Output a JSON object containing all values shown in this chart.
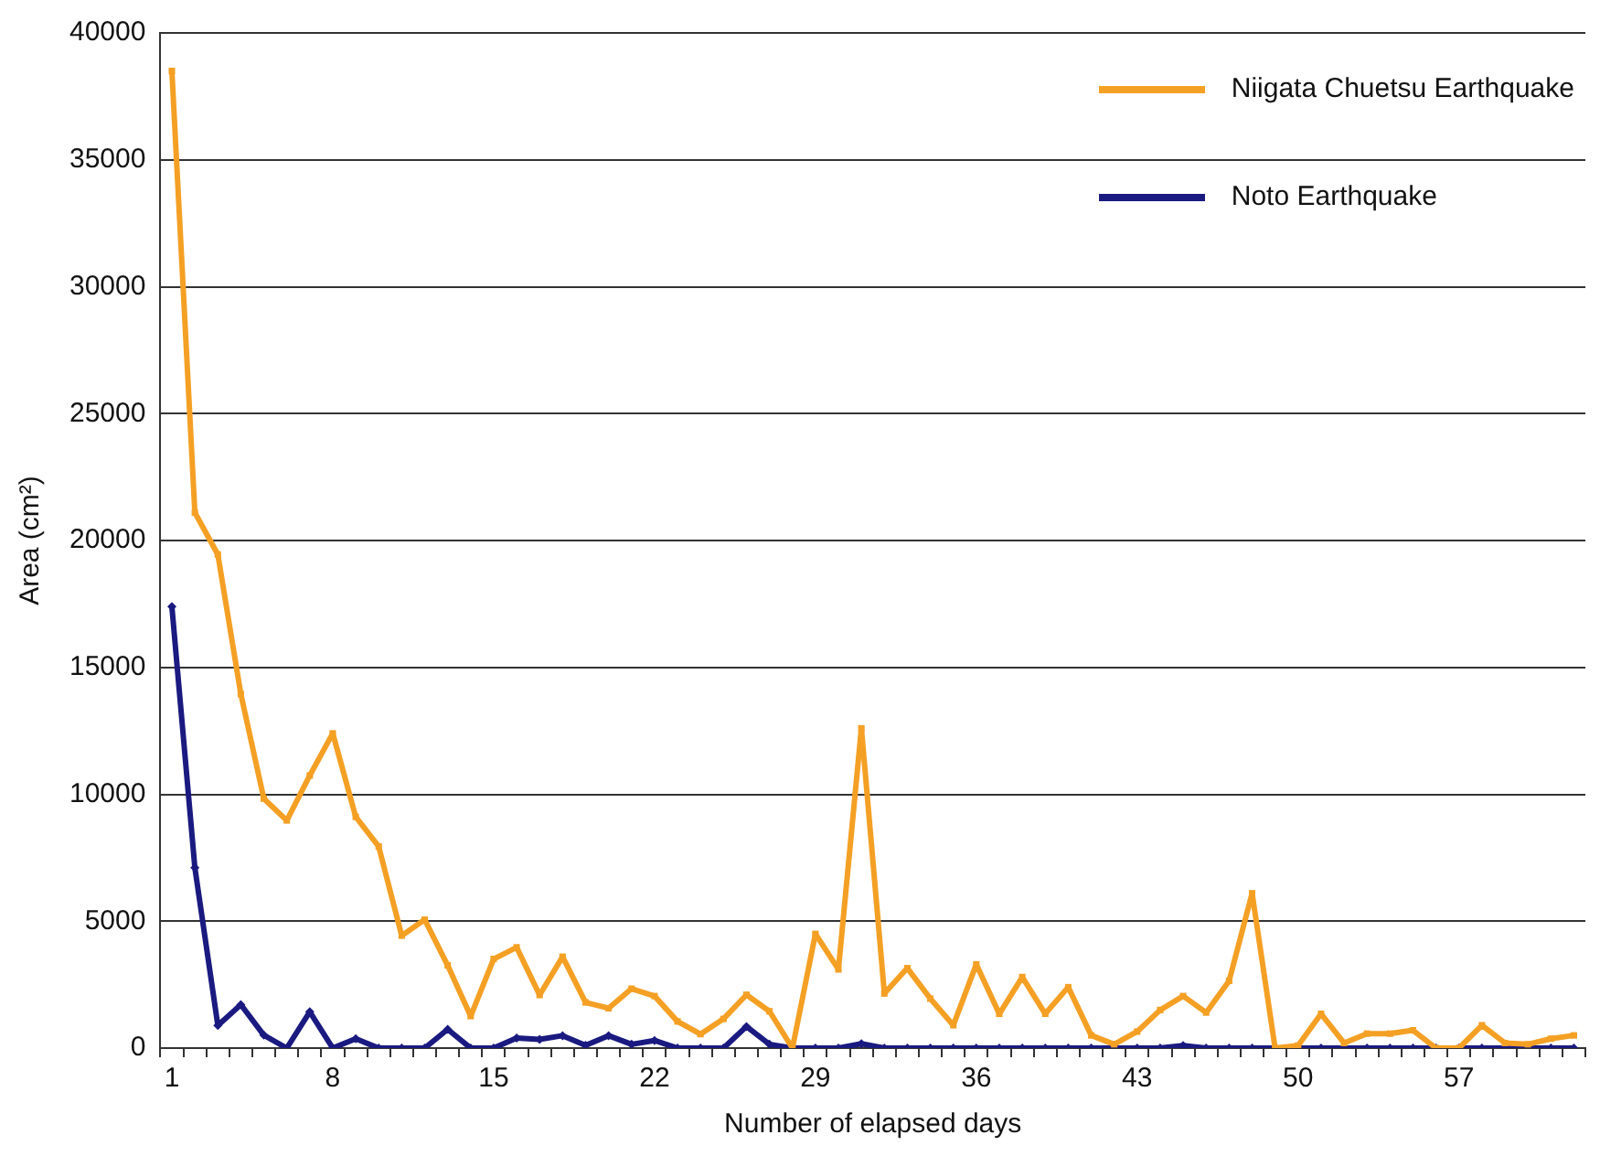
{
  "chart_data": {
    "type": "line",
    "xlabel": "Number of elapsed days",
    "ylabel": "Area (cm²)",
    "categories": [
      "1",
      null,
      null,
      null,
      null,
      null,
      null,
      "8",
      null,
      null,
      null,
      null,
      null,
      null,
      "15",
      null,
      null,
      null,
      null,
      null,
      null,
      "22",
      null,
      null,
      null,
      null,
      null,
      null,
      "29",
      null,
      null,
      null,
      null,
      null,
      null,
      "36",
      null,
      null,
      null,
      null,
      null,
      null,
      "43",
      null,
      null,
      null,
      null,
      null,
      null,
      "50",
      null,
      null,
      null,
      null,
      null,
      null,
      "57",
      null,
      null,
      null,
      null,
      null
    ],
    "series": [
      {
        "name": "Niigata Chuetsu Earthquake",
        "color": "#f4a024",
        "marker": "square",
        "values": [
          38500,
          21100,
          19450,
          13950,
          9830,
          8970,
          10740,
          12400,
          9110,
          7940,
          4430,
          5060,
          3260,
          1260,
          3510,
          3970,
          2090,
          3600,
          1800,
          1570,
          2340,
          2050,
          1050,
          550,
          1150,
          2100,
          1450,
          0,
          4500,
          3100,
          12600,
          2150,
          3150,
          1950,
          900,
          3300,
          1350,
          2800,
          1350,
          2400,
          500,
          150,
          650,
          1500,
          2050,
          1400,
          2650,
          6100,
          0,
          100,
          1350,
          200,
          570,
          570,
          700,
          0,
          0,
          900,
          200,
          150,
          370,
          500
        ]
      },
      {
        "name": "Noto Earthquake",
        "color": "#1a1a80",
        "marker": "diamond",
        "values": [
          17400,
          7110,
          890,
          1710,
          510,
          0,
          1430,
          0,
          370,
          0,
          0,
          0,
          740,
          0,
          0,
          400,
          340,
          490,
          110,
          490,
          150,
          300,
          0,
          0,
          0,
          850,
          150,
          0,
          0,
          0,
          170,
          0,
          0,
          0,
          0,
          0,
          0,
          0,
          0,
          0,
          0,
          0,
          0,
          0,
          100,
          0,
          0,
          0,
          0,
          0,
          0,
          0,
          0,
          0,
          0,
          0,
          0,
          0,
          0,
          0,
          0,
          0
        ]
      }
    ],
    "ylim": [
      0,
      40000
    ],
    "yticks": [
      0,
      5000,
      10000,
      15000,
      20000,
      25000,
      30000,
      35000,
      40000
    ],
    "grid": "y",
    "legend": "top right",
    "line_style": "solid"
  }
}
